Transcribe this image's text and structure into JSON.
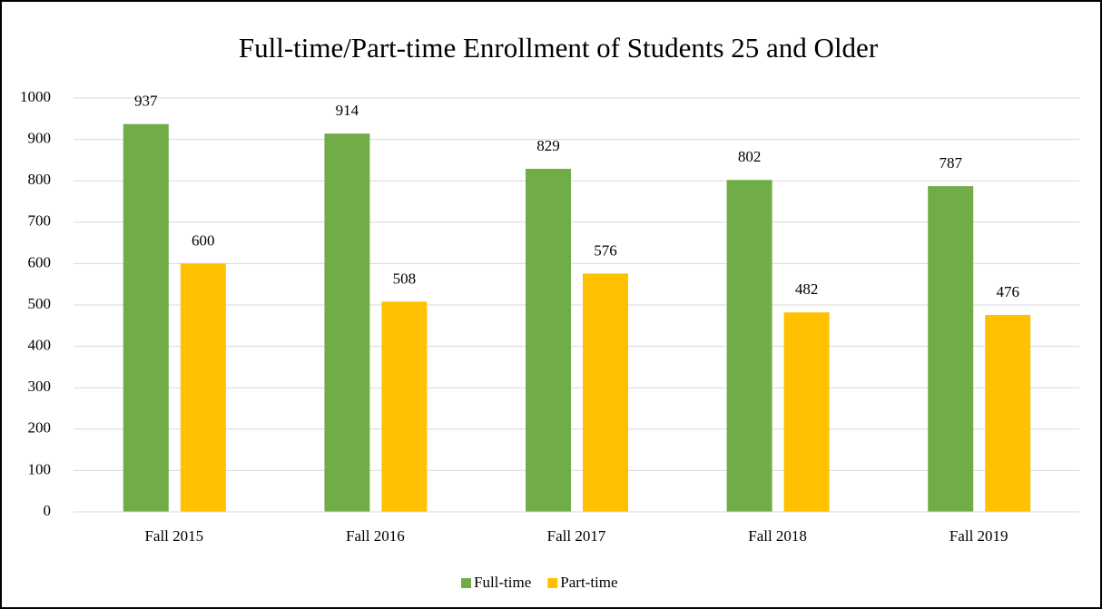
{
  "chart_data": {
    "type": "bar",
    "title": "Full-time/Part-time  Enrollment of Students 25 and Older",
    "categories": [
      "Fall 2015",
      "Fall 2016",
      "Fall 2017",
      "Fall 2018",
      "Fall 2019"
    ],
    "series": [
      {
        "name": "Full-time",
        "color": "#70ad47",
        "values": [
          937,
          914,
          829,
          802,
          787
        ]
      },
      {
        "name": "Part-time",
        "color": "#ffc000",
        "values": [
          600,
          508,
          576,
          482,
          476
        ]
      }
    ],
    "ylim": [
      0,
      1000
    ],
    "yticks": [
      0,
      100,
      200,
      300,
      400,
      500,
      600,
      700,
      800,
      900,
      1000
    ],
    "grid": true,
    "legend": "bottom"
  }
}
